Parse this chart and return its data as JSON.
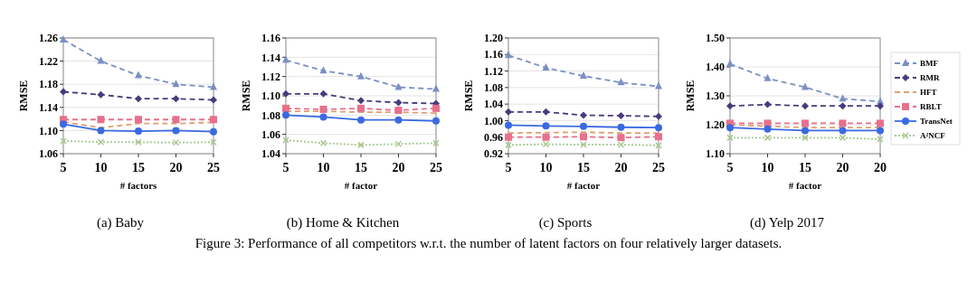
{
  "chart_data": [
    {
      "type": "line",
      "title": "(a) Baby",
      "xlabel": "# factors",
      "ylabel": "RMSE",
      "categories": [
        "5",
        "10",
        "15",
        "20",
        "25"
      ],
      "ylim": [
        1.06,
        1.26
      ],
      "yticks": [
        1.06,
        {
          "value": 1.1,
          "label": "1.10"
        },
        1.14,
        1.18,
        1.22,
        1.26
      ],
      "grid": "y",
      "legend": false,
      "series": [
        {
          "color": "#7b8fc4",
          "line_style": "dashed",
          "marker": "triangle",
          "values": [
            1.257,
            1.22,
            1.195,
            1.18,
            1.175
          ]
        },
        {
          "color": "#4a3a7c",
          "line_style": "dashed",
          "marker": "diamond",
          "values": [
            1.167,
            1.162,
            1.155,
            1.155,
            1.153
          ]
        },
        {
          "color": "#e0a070",
          "line_style": "dashed",
          "marker": "none",
          "values": [
            1.115,
            1.105,
            1.112,
            1.112,
            1.114
          ]
        },
        {
          "color": "#e8708c",
          "line_style": "dashed",
          "marker": "square",
          "values": [
            1.119,
            1.119,
            1.119,
            1.119,
            1.119
          ]
        },
        {
          "color": "#3a6ae0",
          "line_style": "solid",
          "marker": "circle",
          "values": [
            1.111,
            1.1,
            1.099,
            1.1,
            1.098
          ]
        },
        {
          "color": "#a8c890",
          "line_style": "dotted",
          "marker": "cross",
          "values": [
            1.082,
            1.08,
            1.08,
            1.079,
            1.08
          ]
        }
      ]
    },
    {
      "type": "line",
      "title": "(b) Home & Kitchen",
      "xlabel": "# factor",
      "ylabel": "RMSE",
      "categories": [
        "5",
        "10",
        "15",
        "20",
        "25"
      ],
      "ylim": [
        1.04,
        1.16
      ],
      "yticks": [
        1.04,
        1.06,
        1.08,
        {
          "value": 1.1,
          "label": "1.10"
        },
        1.12,
        1.14,
        1.16
      ],
      "grid": "y",
      "legend": false,
      "series": [
        {
          "color": "#7b8fc4",
          "line_style": "dashed",
          "marker": "triangle",
          "values": [
            1.137,
            1.126,
            1.12,
            1.109,
            1.107
          ]
        },
        {
          "color": "#4a3a7c",
          "line_style": "dashed",
          "marker": "diamond",
          "values": [
            1.102,
            1.102,
            1.095,
            1.093,
            1.092
          ]
        },
        {
          "color": "#e0a070",
          "line_style": "dashed",
          "marker": "none",
          "values": [
            1.084,
            1.084,
            1.083,
            1.083,
            1.082
          ]
        },
        {
          "color": "#e8708c",
          "line_style": "dashed",
          "marker": "square",
          "values": [
            1.087,
            1.086,
            1.087,
            1.085,
            1.087
          ]
        },
        {
          "color": "#3a6ae0",
          "line_style": "solid",
          "marker": "circle",
          "values": [
            1.08,
            1.078,
            1.075,
            1.075,
            1.074
          ]
        },
        {
          "color": "#a8c890",
          "line_style": "dotted",
          "marker": "cross",
          "values": [
            1.054,
            1.051,
            1.049,
            1.05,
            1.051
          ]
        }
      ]
    },
    {
      "type": "line",
      "title": "(c) Sports",
      "xlabel": "# factor",
      "ylabel": "RMSE",
      "categories": [
        "5",
        "10",
        "15",
        "20",
        "25"
      ],
      "ylim": [
        0.92,
        1.2
      ],
      "yticks": [
        0.92,
        0.96,
        {
          "value": 1,
          "label": "1.00"
        },
        1.04,
        1.08,
        1.12,
        1.16,
        {
          "value": 1.2,
          "label": "1.20"
        }
      ],
      "grid": "y",
      "legend": false,
      "series": [
        {
          "color": "#7b8fc4",
          "line_style": "dashed",
          "marker": "triangle",
          "values": [
            1.158,
            1.128,
            1.108,
            1.092,
            1.083
          ]
        },
        {
          "color": "#4a3a7c",
          "line_style": "dashed",
          "marker": "diamond",
          "values": [
            1.021,
            1.021,
            1.013,
            1.012,
            1.01
          ]
        },
        {
          "color": "#e0a070",
          "line_style": "dashed",
          "marker": "none",
          "values": [
            0.97,
            0.971,
            0.972,
            0.97,
            0.97
          ]
        },
        {
          "color": "#e8708c",
          "line_style": "dashed",
          "marker": "square",
          "values": [
            0.96,
            0.96,
            0.961,
            0.959,
            0.961
          ]
        },
        {
          "color": "#3a6ae0",
          "line_style": "solid",
          "marker": "circle",
          "values": [
            0.989,
            0.987,
            0.986,
            0.984,
            0.983
          ]
        },
        {
          "color": "#a8c890",
          "line_style": "dotted",
          "marker": "cross",
          "values": [
            0.941,
            0.943,
            0.942,
            0.942,
            0.94
          ]
        }
      ]
    },
    {
      "type": "line",
      "title": "(d) Yelp 2017",
      "xlabel": "# factor",
      "ylabel": "RMSE",
      "categories": [
        "5",
        "10",
        "15",
        "20",
        "20"
      ],
      "ylim": [
        1.1,
        1.5
      ],
      "yticks": [
        {
          "value": 1.1,
          "label": "1.10"
        },
        {
          "value": 1.2,
          "label": "1.20"
        },
        {
          "value": 1.3,
          "label": "1.30"
        },
        {
          "value": 1.4,
          "label": "1.40"
        },
        {
          "value": 1.5,
          "label": "1.50"
        }
      ],
      "grid": "y",
      "legend": "right",
      "annotations": [
        "Figure 3: Performance of all competitors w.r.t. the number of latent factors on four relatively larger datasets."
      ],
      "series": [
        {
          "name": "BMF",
          "color": "#7b8fc4",
          "line_style": "dashed",
          "marker": "triangle",
          "values": [
            1.41,
            1.36,
            1.33,
            1.29,
            1.28
          ]
        },
        {
          "name": "RMR",
          "color": "#4a3a7c",
          "line_style": "dashed",
          "marker": "diamond",
          "values": [
            1.265,
            1.27,
            1.265,
            1.265,
            1.265
          ]
        },
        {
          "name": "HFT",
          "color": "#e0a070",
          "line_style": "dashed",
          "marker": "none",
          "values": [
            1.2,
            1.195,
            1.19,
            1.19,
            1.19
          ]
        },
        {
          "name": "RBLT",
          "color": "#e8708c",
          "line_style": "dashed",
          "marker": "square",
          "values": [
            1.205,
            1.205,
            1.205,
            1.205,
            1.205
          ]
        },
        {
          "name": "TransNet",
          "color": "#3a6ae0",
          "line_style": "solid",
          "marker": "circle",
          "values": [
            1.19,
            1.185,
            1.18,
            1.18,
            1.18
          ]
        },
        {
          "name": "A²NCF",
          "color": "#a8c890",
          "line_style": "dotted",
          "marker": "cross",
          "values": [
            1.155,
            1.155,
            1.155,
            1.155,
            1.15
          ]
        }
      ]
    }
  ]
}
